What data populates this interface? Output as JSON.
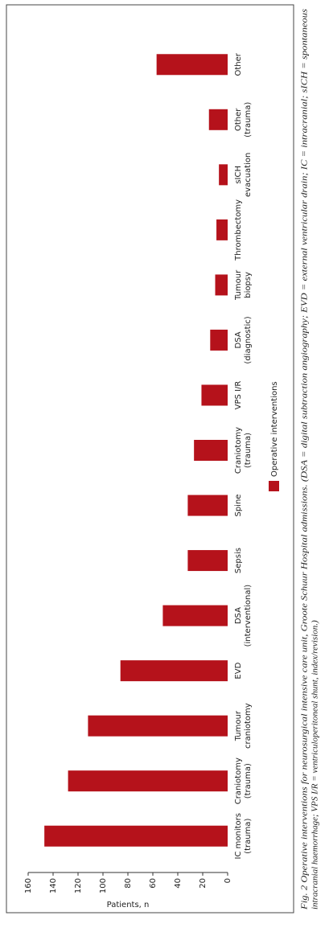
{
  "chart_data": {
    "type": "bar",
    "y_label": "Patients, n",
    "categories": [
      [
        "IC monitors",
        "(trauma)"
      ],
      [
        "Craniotomy",
        "(trauma)"
      ],
      [
        "Tumour",
        "craniotomy"
      ],
      [
        "EVD"
      ],
      [
        "DSA",
        "(interventional)"
      ],
      [
        "Sepsis"
      ],
      [
        "Spine"
      ],
      [
        "Craniotomy",
        "(trauma)"
      ],
      [
        "VPS I/R"
      ],
      [
        "DSA",
        "(diagnostic)"
      ],
      [
        "Tumour",
        "biopsy"
      ],
      [
        "Thrombectomy"
      ],
      [
        "sICH",
        "evacuation"
      ],
      [
        "Other",
        "(trauma)"
      ],
      [
        "Other"
      ]
    ],
    "series": [
      {
        "name": "Operative interventions",
        "color": "#b5121b",
        "values": [
          147,
          128,
          112,
          86,
          52,
          32,
          32,
          27,
          21,
          14,
          10,
          9,
          7,
          15,
          57
        ]
      }
    ],
    "ylim": [
      0,
      160
    ],
    "yticks": [
      0,
      20,
      40,
      60,
      80,
      100,
      120,
      140,
      160
    ],
    "caption": [
      "Fig. 2 Operative interventions for neurosurgical intensive care unit, Groote Schuur Hospital admissions. (DSA = digital subtraction angiography; EVD = external ventricular drain; IC = intracranial; sICH = spontaneous",
      "intracranial haemorrhage; VPS I/R = ventriculoperitoneal shunt, index/revision.)"
    ]
  }
}
